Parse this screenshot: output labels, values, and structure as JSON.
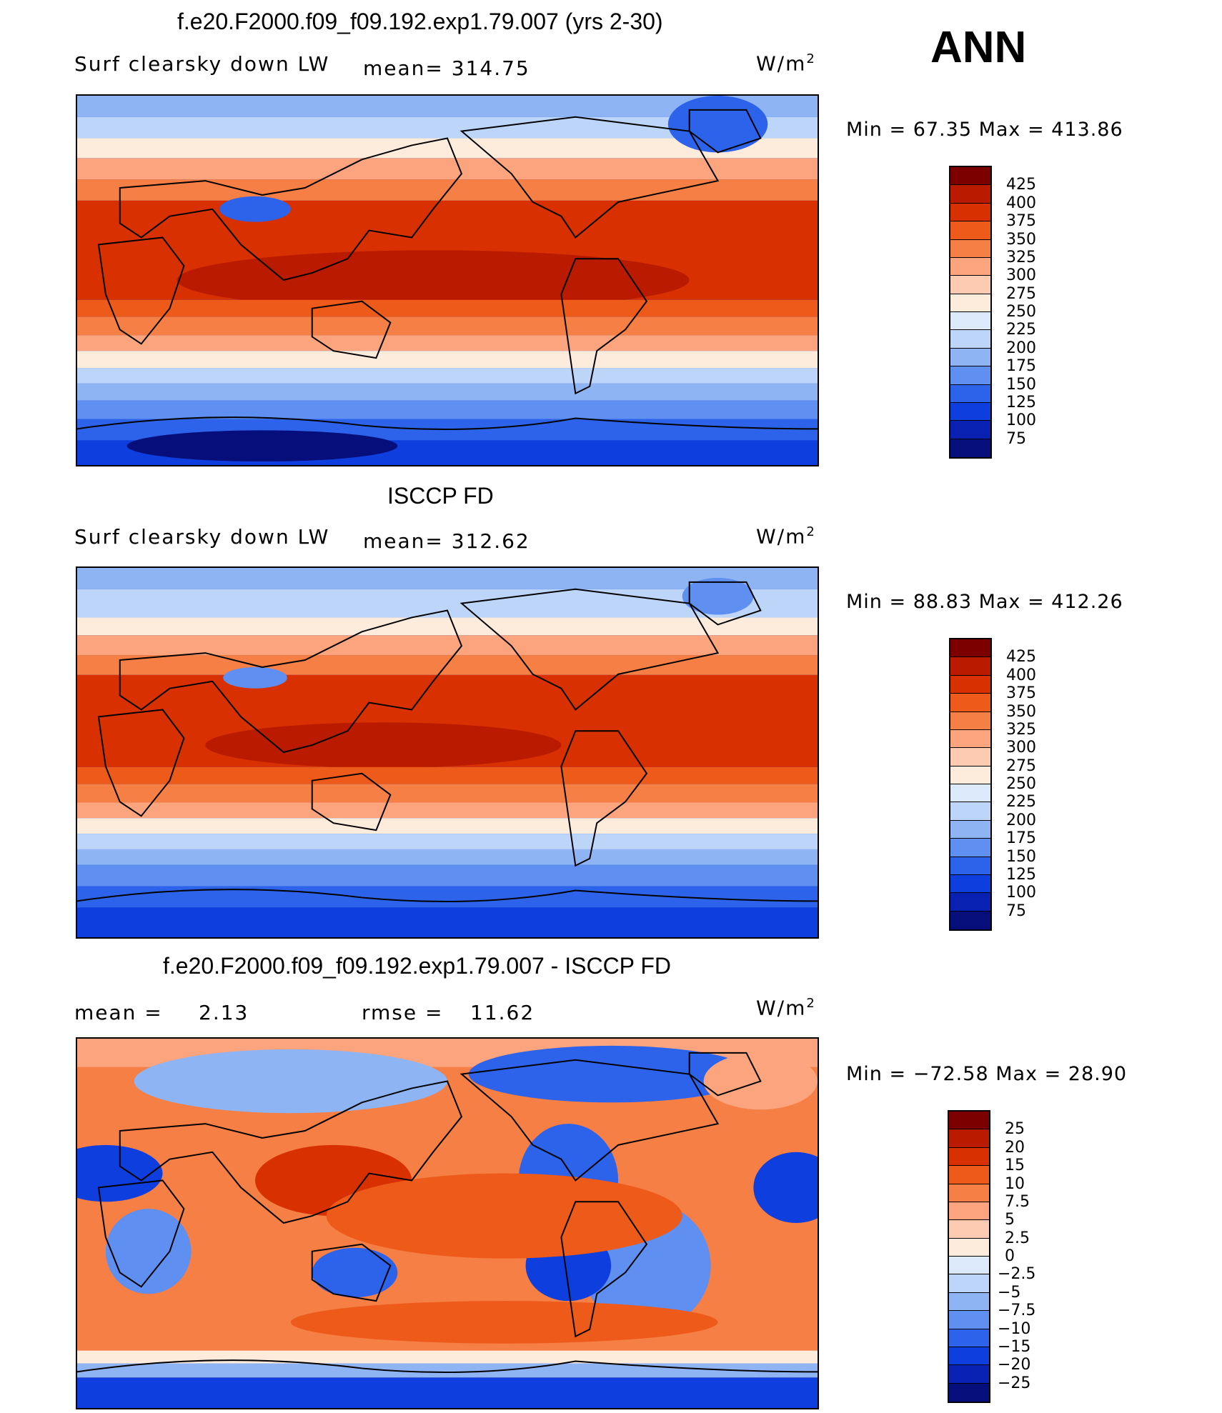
{
  "season": "ANN",
  "units": "W/m",
  "units_sup": "2",
  "panels": [
    {
      "title": "f.e20.F2000.f09_f09.192.exp1.79.007 (yrs 2-30)",
      "variable": "Surf clearsky down LW",
      "stat": "mean= 314.75",
      "stat2": "",
      "minmax": "Min =   67.35 Max = 413.86",
      "colorbar_levels": [
        "425",
        "400",
        "375",
        "350",
        "325",
        "300",
        "275",
        "250",
        "225",
        "200",
        "175",
        "150",
        "125",
        "100",
        "75"
      ],
      "colors": [
        "#7d0000",
        "#b91a00",
        "#d83000",
        "#ee5a1a",
        "#f57f45",
        "#fba47d",
        "#fccbb2",
        "#fdebdc",
        "#dce9fa",
        "#bcd5f8",
        "#8fb4f3",
        "#5f8ff0",
        "#2d63ea",
        "#0f3ede",
        "#0821b3",
        "#050e7a"
      ]
    },
    {
      "title": "ISCCP FD",
      "variable": "Surf clearsky down LW",
      "stat": "mean= 312.62",
      "stat2": "",
      "minmax": "Min =   88.83 Max = 412.26",
      "colorbar_levels": [
        "425",
        "400",
        "375",
        "350",
        "325",
        "300",
        "275",
        "250",
        "225",
        "200",
        "175",
        "150",
        "125",
        "100",
        "75"
      ],
      "colors": [
        "#7d0000",
        "#b91a00",
        "#d83000",
        "#ee5a1a",
        "#f57f45",
        "#fba47d",
        "#fccbb2",
        "#fdebdc",
        "#dce9fa",
        "#bcd5f8",
        "#8fb4f3",
        "#5f8ff0",
        "#2d63ea",
        "#0f3ede",
        "#0821b3",
        "#050e7a"
      ]
    },
    {
      "title": "f.e20.F2000.f09_f09.192.exp1.79.007 - ISCCP FD",
      "variable": "mean =",
      "stat": "2.13",
      "stat2_label": "rmse =",
      "stat2": "11.62",
      "minmax": "Min = −72.58 Max =   28.90",
      "colorbar_levels": [
        "25",
        "20",
        "15",
        "10",
        "7.5",
        "5",
        "2.5",
        "0",
        "−2.5",
        "−5",
        "−7.5",
        "−10",
        "−15",
        "−20",
        "−25"
      ],
      "colors": [
        "#7d0000",
        "#b91a00",
        "#d83000",
        "#ee5a1a",
        "#f57f45",
        "#fba47d",
        "#fccbb2",
        "#fdebdc",
        "#dce9fa",
        "#bcd5f8",
        "#8fb4f3",
        "#5f8ff0",
        "#2d63ea",
        "#0f3ede",
        "#0821b3",
        "#050e7a"
      ]
    }
  ]
}
